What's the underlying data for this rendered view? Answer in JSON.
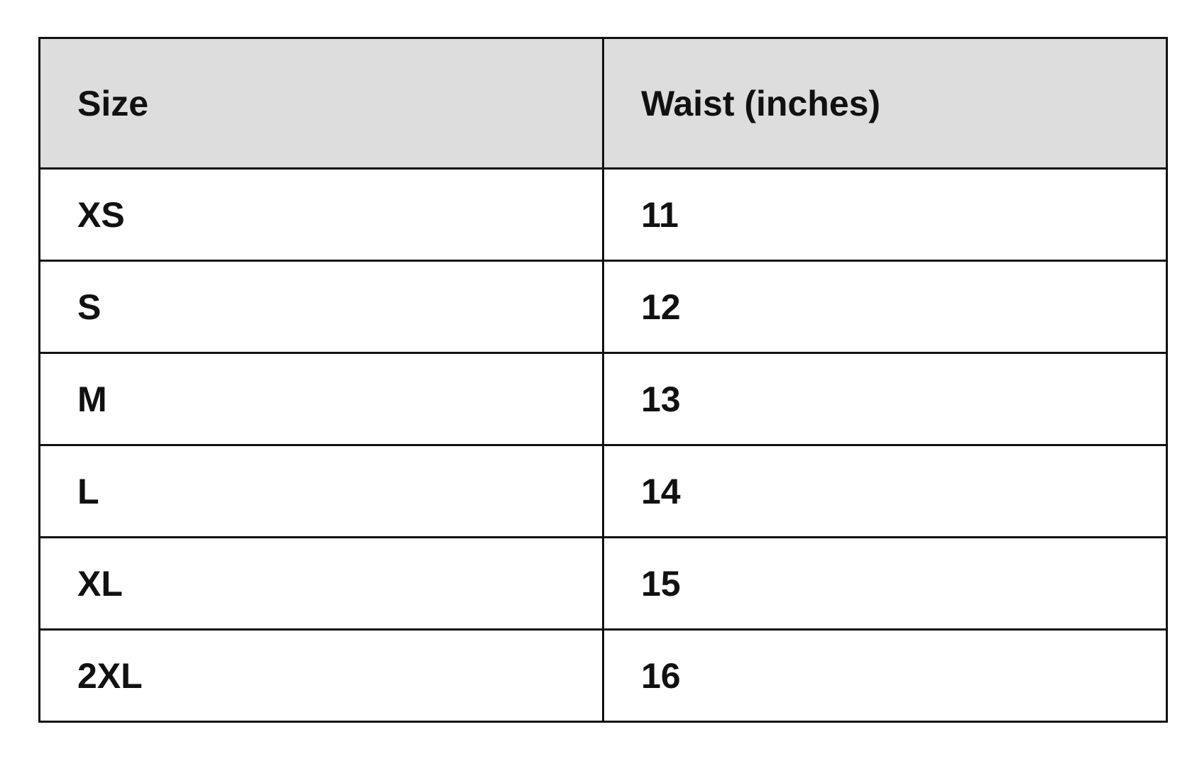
{
  "table": {
    "headers": [
      "Size",
      "Waist (inches)"
    ],
    "rows": [
      [
        "XS",
        "11"
      ],
      [
        "S",
        "12"
      ],
      [
        "M",
        "13"
      ],
      [
        "L",
        "14"
      ],
      [
        "XL",
        "15"
      ],
      [
        "2XL",
        "16"
      ]
    ],
    "header_background": "#dddddd"
  }
}
